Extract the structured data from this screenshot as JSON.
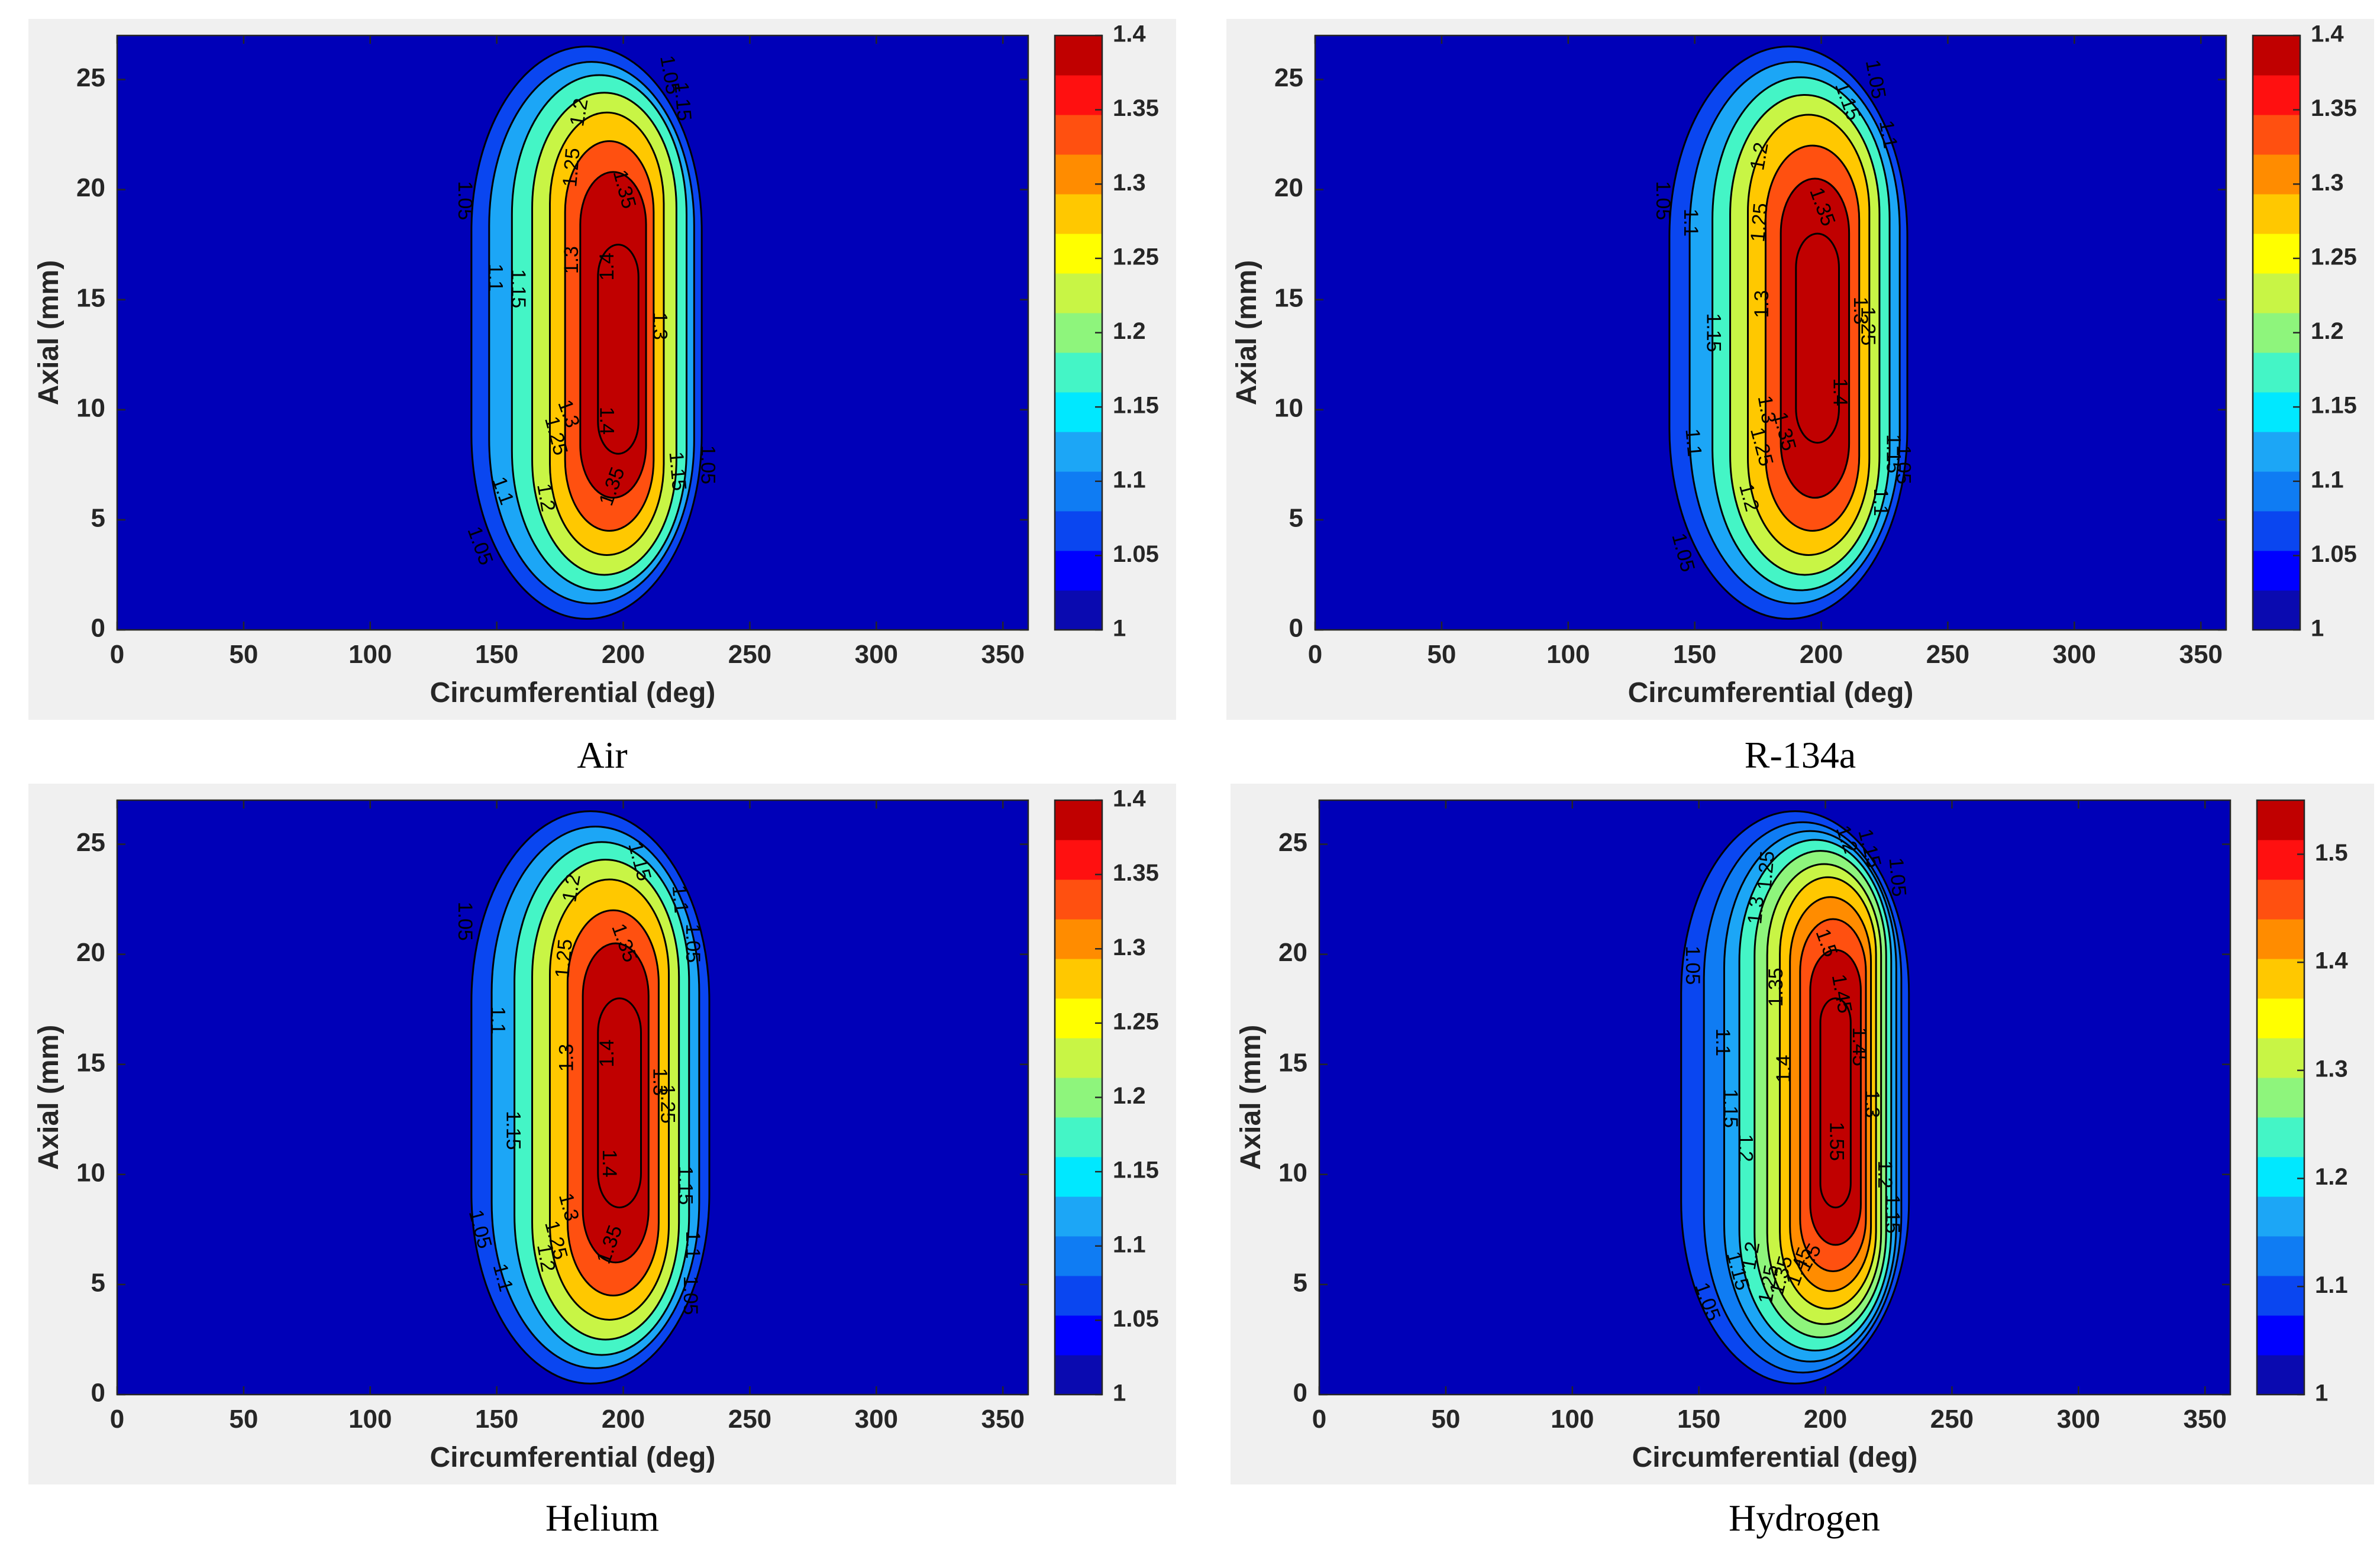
{
  "figure": {
    "captions": [
      "Air",
      "R-134a",
      "Helium",
      "Hydrogen"
    ]
  },
  "colors": {
    "panel_background": "#f0f0f0",
    "field_background": "#0000b8",
    "contour_line": "#000000"
  },
  "colormap": [
    "#0a0ab0",
    "#0000ff",
    "#0a46f0",
    "#0f7cf3",
    "#1ca6f6",
    "#00e8ff",
    "#44f5c6",
    "#8ef57c",
    "#c8f545",
    "#ffff00",
    "#ffc800",
    "#ff8c00",
    "#ff5010",
    "#ff1010",
    "#c00000"
  ],
  "chart_data": [
    {
      "type": "heatmap",
      "title": "Air",
      "xlabel": "Circumferential (deg)",
      "ylabel": "Axial (mm)",
      "xlim": [
        0,
        360
      ],
      "ylim": [
        0,
        27
      ],
      "xticks": [
        "0",
        "50",
        "100",
        "150",
        "200",
        "250",
        "300",
        "350"
      ],
      "yticks": [
        "0",
        "5",
        "10",
        "15",
        "20",
        "25"
      ],
      "colorbar": {
        "min": 1,
        "max": 1.4,
        "ticks": [
          "1",
          "1.05",
          "1.1",
          "1.15",
          "1.2",
          "1.25",
          "1.3",
          "1.35",
          "1.4"
        ]
      },
      "peak": {
        "x": 198,
        "y": 13.5,
        "value": 1.42
      },
      "contour_levels": [
        1.05,
        1.1,
        1.15,
        1.2,
        1.25,
        1.3,
        1.35,
        1.4
      ],
      "contours": [
        {
          "level": 1.05,
          "left": 140,
          "right": 231,
          "bottom": 0.5,
          "top": 26.5
        },
        {
          "level": 1.1,
          "left": 147,
          "right": 228,
          "bottom": 1.2,
          "top": 25.8
        },
        {
          "level": 1.15,
          "left": 156,
          "right": 225,
          "bottom": 1.8,
          "top": 25.2
        },
        {
          "level": 1.2,
          "left": 164,
          "right": 221,
          "bottom": 2.5,
          "top": 24.4
        },
        {
          "level": 1.25,
          "left": 171,
          "right": 216,
          "bottom": 3.4,
          "top": 23.5
        },
        {
          "level": 1.3,
          "left": 177,
          "right": 212,
          "bottom": 4.5,
          "top": 22.2
        },
        {
          "level": 1.35,
          "left": 183,
          "right": 209,
          "bottom": 6.0,
          "top": 20.8
        },
        {
          "level": 1.4,
          "left": 190,
          "right": 206,
          "bottom": 8.0,
          "top": 17.5
        }
      ],
      "contour_labels": [
        {
          "text": "1.05",
          "x": 137,
          "y": 19.5,
          "angle": 90
        },
        {
          "text": "1.1",
          "x": 149,
          "y": 16.0,
          "angle": 90
        },
        {
          "text": "1.15",
          "x": 158,
          "y": 15.5,
          "angle": 90
        },
        {
          "text": "1.2",
          "x": 183,
          "y": 23.5,
          "angle": -80
        },
        {
          "text": "1.25",
          "x": 180,
          "y": 21.0,
          "angle": -85
        },
        {
          "text": "1.3",
          "x": 180,
          "y": 16.8,
          "angle": -90
        },
        {
          "text": "1.35",
          "x": 200,
          "y": 20.0,
          "angle": 75
        },
        {
          "text": "1.4",
          "x": 194,
          "y": 16.5,
          "angle": -90
        },
        {
          "text": "1.4",
          "x": 193,
          "y": 9.5,
          "angle": 90
        },
        {
          "text": "1.3",
          "x": 214,
          "y": 13.8,
          "angle": 90
        },
        {
          "text": "1.35",
          "x": 196,
          "y": 6.5,
          "angle": -70
        },
        {
          "text": "1.3",
          "x": 178,
          "y": 9.8,
          "angle": 70
        },
        {
          "text": "1.25",
          "x": 173,
          "y": 8.8,
          "angle": 75
        },
        {
          "text": "1.2",
          "x": 169,
          "y": 6.0,
          "angle": 80
        },
        {
          "text": "1.1",
          "x": 152,
          "y": 6.3,
          "angle": 70
        },
        {
          "text": "1.05",
          "x": 143,
          "y": 3.8,
          "angle": 70
        },
        {
          "text": "1.15",
          "x": 221,
          "y": 7.2,
          "angle": 85
        },
        {
          "text": "1.05",
          "x": 233,
          "y": 7.5,
          "angle": 90
        },
        {
          "text": "1.05",
          "x": 218,
          "y": 25.2,
          "angle": 80
        },
        {
          "text": "1.15",
          "x": 223,
          "y": 24.0,
          "angle": 85
        }
      ]
    },
    {
      "type": "heatmap",
      "title": "R-134a",
      "xlabel": "Circumferential (deg)",
      "ylabel": "Axial (mm)",
      "xlim": [
        0,
        360
      ],
      "ylim": [
        0,
        27
      ],
      "xticks": [
        "0",
        "50",
        "100",
        "150",
        "200",
        "250",
        "300",
        "350"
      ],
      "yticks": [
        "0",
        "5",
        "10",
        "15",
        "20",
        "25"
      ],
      "colorbar": {
        "min": 1,
        "max": 1.4,
        "ticks": [
          "1",
          "1.05",
          "1.1",
          "1.15",
          "1.2",
          "1.25",
          "1.3",
          "1.35",
          "1.4"
        ]
      },
      "peak": {
        "x": 198,
        "y": 13.5,
        "value": 1.42
      },
      "contour_levels": [
        1.05,
        1.1,
        1.15,
        1.2,
        1.25,
        1.3,
        1.35,
        1.4
      ],
      "contours": [
        {
          "level": 1.05,
          "left": 140,
          "right": 234,
          "bottom": 0.5,
          "top": 26.5
        },
        {
          "level": 1.1,
          "left": 148,
          "right": 231,
          "bottom": 1.2,
          "top": 25.8
        },
        {
          "level": 1.15,
          "left": 157,
          "right": 227,
          "bottom": 1.8,
          "top": 25.1
        },
        {
          "level": 1.2,
          "left": 164,
          "right": 223,
          "bottom": 2.5,
          "top": 24.3
        },
        {
          "level": 1.25,
          "left": 171,
          "right": 219,
          "bottom": 3.4,
          "top": 23.4
        },
        {
          "level": 1.3,
          "left": 178,
          "right": 215,
          "bottom": 4.5,
          "top": 22.0
        },
        {
          "level": 1.35,
          "left": 184,
          "right": 211,
          "bottom": 6.0,
          "top": 20.5
        },
        {
          "level": 1.4,
          "left": 190,
          "right": 207,
          "bottom": 8.5,
          "top": 18.0
        }
      ],
      "contour_labels": [
        {
          "text": "1.05",
          "x": 137,
          "y": 19.5,
          "angle": 90
        },
        {
          "text": "1.1",
          "x": 148,
          "y": 18.5,
          "angle": 90
        },
        {
          "text": "1.15",
          "x": 157,
          "y": 13.5,
          "angle": 90
        },
        {
          "text": "1.2",
          "x": 176,
          "y": 21.5,
          "angle": -80
        },
        {
          "text": "1.25",
          "x": 176,
          "y": 18.5,
          "angle": -85
        },
        {
          "text": "1.3",
          "x": 177,
          "y": 14.8,
          "angle": -90
        },
        {
          "text": "1.35",
          "x": 200,
          "y": 19.2,
          "angle": 70
        },
        {
          "text": "1.4",
          "x": 207,
          "y": 10.8,
          "angle": 90
        },
        {
          "text": "1.3",
          "x": 178,
          "y": 10.0,
          "angle": 80
        },
        {
          "text": "1.35",
          "x": 185,
          "y": 9.0,
          "angle": 75
        },
        {
          "text": "1.25",
          "x": 176,
          "y": 8.3,
          "angle": 75
        },
        {
          "text": "1.2",
          "x": 171,
          "y": 6.0,
          "angle": 75
        },
        {
          "text": "1.1",
          "x": 149,
          "y": 8.5,
          "angle": 85
        },
        {
          "text": "1.05",
          "x": 145,
          "y": 3.5,
          "angle": 75
        },
        {
          "text": "1.3",
          "x": 215,
          "y": 14.5,
          "angle": 90
        },
        {
          "text": "1.25",
          "x": 218,
          "y": 13.8,
          "angle": 90
        },
        {
          "text": "1.15",
          "x": 228,
          "y": 8.0,
          "angle": 90
        },
        {
          "text": "1.1",
          "x": 223,
          "y": 5.8,
          "angle": 90
        },
        {
          "text": "1.05",
          "x": 232,
          "y": 7.5,
          "angle": 90
        },
        {
          "text": "1.15",
          "x": 210,
          "y": 24.0,
          "angle": 70
        },
        {
          "text": "1.05",
          "x": 221,
          "y": 25.0,
          "angle": 80
        },
        {
          "text": "1.1",
          "x": 226,
          "y": 22.5,
          "angle": 80
        }
      ]
    },
    {
      "type": "heatmap",
      "title": "Helium",
      "xlabel": "Circumferential (deg)",
      "ylabel": "Axial (mm)",
      "xlim": [
        0,
        360
      ],
      "ylim": [
        0,
        27
      ],
      "xticks": [
        "0",
        "50",
        "100",
        "150",
        "200",
        "250",
        "300",
        "350"
      ],
      "yticks": [
        "0",
        "5",
        "10",
        "15",
        "20",
        "25"
      ],
      "colorbar": {
        "min": 1,
        "max": 1.4,
        "ticks": [
          "1",
          "1.05",
          "1.1",
          "1.15",
          "1.2",
          "1.25",
          "1.3",
          "1.35",
          "1.4"
        ]
      },
      "peak": {
        "x": 198,
        "y": 13.5,
        "value": 1.42
      },
      "contour_levels": [
        1.05,
        1.1,
        1.15,
        1.2,
        1.25,
        1.3,
        1.35,
        1.4
      ],
      "contours": [
        {
          "level": 1.05,
          "left": 140,
          "right": 234,
          "bottom": 0.5,
          "top": 26.5
        },
        {
          "level": 1.1,
          "left": 148,
          "right": 230,
          "bottom": 1.2,
          "top": 25.8
        },
        {
          "level": 1.15,
          "left": 157,
          "right": 226,
          "bottom": 1.8,
          "top": 25.1
        },
        {
          "level": 1.2,
          "left": 164,
          "right": 222,
          "bottom": 2.5,
          "top": 24.3
        },
        {
          "level": 1.25,
          "left": 171,
          "right": 218,
          "bottom": 3.4,
          "top": 23.4
        },
        {
          "level": 1.3,
          "left": 178,
          "right": 214,
          "bottom": 4.5,
          "top": 22.0
        },
        {
          "level": 1.35,
          "left": 184,
          "right": 210,
          "bottom": 6.0,
          "top": 20.5
        },
        {
          "level": 1.4,
          "left": 190,
          "right": 207,
          "bottom": 8.5,
          "top": 18.0
        }
      ],
      "contour_labels": [
        {
          "text": "1.05",
          "x": 137,
          "y": 21.5,
          "angle": 90
        },
        {
          "text": "1.1",
          "x": 150,
          "y": 17.0,
          "angle": 90
        },
        {
          "text": "1.15",
          "x": 156,
          "y": 12.0,
          "angle": 90
        },
        {
          "text": "1.2",
          "x": 180,
          "y": 23.0,
          "angle": -80
        },
        {
          "text": "1.25",
          "x": 177,
          "y": 19.8,
          "angle": -85
        },
        {
          "text": "1.3",
          "x": 178,
          "y": 15.3,
          "angle": -90
        },
        {
          "text": "1.35",
          "x": 200,
          "y": 20.5,
          "angle": 70
        },
        {
          "text": "1.4",
          "x": 194,
          "y": 15.5,
          "angle": -90
        },
        {
          "text": "1.4",
          "x": 194,
          "y": 10.5,
          "angle": 90
        },
        {
          "text": "1.3",
          "x": 214,
          "y": 14.2,
          "angle": 90
        },
        {
          "text": "1.25",
          "x": 217,
          "y": 13.2,
          "angle": 90
        },
        {
          "text": "1.3",
          "x": 178,
          "y": 8.5,
          "angle": 75
        },
        {
          "text": "1.25",
          "x": 173,
          "y": 7.0,
          "angle": 75
        },
        {
          "text": "1.2",
          "x": 169,
          "y": 6.2,
          "angle": 80
        },
        {
          "text": "1.35",
          "x": 195,
          "y": 6.8,
          "angle": -70
        },
        {
          "text": "1.1",
          "x": 152,
          "y": 5.3,
          "angle": 75
        },
        {
          "text": "1.05",
          "x": 143,
          "y": 7.5,
          "angle": 75
        },
        {
          "text": "1.15",
          "x": 224,
          "y": 9.5,
          "angle": 90
        },
        {
          "text": "1.1",
          "x": 227,
          "y": 6.8,
          "angle": 90
        },
        {
          "text": "1.05",
          "x": 226,
          "y": 4.5,
          "angle": 90
        },
        {
          "text": "1.15",
          "x": 206,
          "y": 24.2,
          "angle": 75
        },
        {
          "text": "1.1",
          "x": 222,
          "y": 22.5,
          "angle": 85
        },
        {
          "text": "1.05",
          "x": 227,
          "y": 20.5,
          "angle": 90
        }
      ]
    },
    {
      "type": "heatmap",
      "title": "Hydrogen",
      "xlabel": "Circumferential (deg)",
      "ylabel": "Axial (mm)",
      "xlim": [
        0,
        360
      ],
      "ylim": [
        0,
        27
      ],
      "xticks": [
        "0",
        "50",
        "100",
        "150",
        "200",
        "250",
        "300",
        "350"
      ],
      "yticks": [
        "0",
        "5",
        "10",
        "15",
        "20",
        "25"
      ],
      "colorbar": {
        "min": 1,
        "max": 1.55,
        "ticks": [
          "1",
          "1.1",
          "1.2",
          "1.3",
          "1.4",
          "1.5"
        ]
      },
      "peak": {
        "x": 203,
        "y": 14,
        "value": 1.57
      },
      "contour_levels": [
        1.05,
        1.1,
        1.15,
        1.2,
        1.25,
        1.3,
        1.35,
        1.4,
        1.45,
        1.5,
        1.55
      ],
      "contours": [
        {
          "level": 1.05,
          "left": 143,
          "right": 233,
          "bottom": 0.5,
          "top": 26.5
        },
        {
          "level": 1.1,
          "left": 152,
          "right": 230,
          "bottom": 1.0,
          "top": 26.0
        },
        {
          "level": 1.15,
          "left": 160,
          "right": 228,
          "bottom": 1.5,
          "top": 25.6
        },
        {
          "level": 1.2,
          "left": 166,
          "right": 226,
          "bottom": 2.0,
          "top": 25.2
        },
        {
          "level": 1.25,
          "left": 172,
          "right": 224,
          "bottom": 2.6,
          "top": 24.7
        },
        {
          "level": 1.3,
          "left": 177,
          "right": 222,
          "bottom": 3.2,
          "top": 24.1
        },
        {
          "level": 1.35,
          "left": 182,
          "right": 220,
          "bottom": 3.9,
          "top": 23.5
        },
        {
          "level": 1.4,
          "left": 186,
          "right": 218,
          "bottom": 4.7,
          "top": 22.6
        },
        {
          "level": 1.45,
          "left": 190,
          "right": 216,
          "bottom": 5.6,
          "top": 21.6
        },
        {
          "level": 1.5,
          "left": 194,
          "right": 214,
          "bottom": 6.8,
          "top": 20.2
        },
        {
          "level": 1.55,
          "left": 198,
          "right": 210,
          "bottom": 8.5,
          "top": 18.0
        }
      ],
      "contour_labels": [
        {
          "text": "1.05",
          "x": 147,
          "y": 19.5,
          "angle": 90
        },
        {
          "text": "1.1",
          "x": 159,
          "y": 16.0,
          "angle": 90
        },
        {
          "text": "1.15",
          "x": 162,
          "y": 13.0,
          "angle": 90
        },
        {
          "text": "1.2",
          "x": 168,
          "y": 11.2,
          "angle": 90
        },
        {
          "text": "1.3",
          "x": 173,
          "y": 22.0,
          "angle": -85
        },
        {
          "text": "1.25",
          "x": 177,
          "y": 23.8,
          "angle": -85
        },
        {
          "text": "1.35",
          "x": 181,
          "y": 18.5,
          "angle": -90
        },
        {
          "text": "1.4",
          "x": 184,
          "y": 14.8,
          "angle": -90
        },
        {
          "text": "1.5",
          "x": 200,
          "y": 20.5,
          "angle": 70
        },
        {
          "text": "1.45",
          "x": 206,
          "y": 18.2,
          "angle": 80
        },
        {
          "text": "1.55",
          "x": 204,
          "y": 11.5,
          "angle": 90
        },
        {
          "text": "1.5",
          "x": 194,
          "y": 6.2,
          "angle": -60
        },
        {
          "text": "1.45",
          "x": 190,
          "y": 5.8,
          "angle": -70
        },
        {
          "text": "1.35",
          "x": 183,
          "y": 5.4,
          "angle": -75
        },
        {
          "text": "1.25",
          "x": 178,
          "y": 5.0,
          "angle": -80
        },
        {
          "text": "1.2",
          "x": 171,
          "y": 6.3,
          "angle": -80
        },
        {
          "text": "1.15",
          "x": 165,
          "y": 5.6,
          "angle": 75
        },
        {
          "text": "1.05",
          "x": 153,
          "y": 4.2,
          "angle": 70
        },
        {
          "text": "1.45",
          "x": 213,
          "y": 15.8,
          "angle": 90
        },
        {
          "text": "1.3",
          "x": 218,
          "y": 13.2,
          "angle": 90
        },
        {
          "text": "1.2",
          "x": 223,
          "y": 10.0,
          "angle": 90
        },
        {
          "text": "1.15",
          "x": 226,
          "y": 8.2,
          "angle": 90
        },
        {
          "text": "1.05",
          "x": 228,
          "y": 23.5,
          "angle": 85
        },
        {
          "text": "1.15",
          "x": 217,
          "y": 24.8,
          "angle": 75
        },
        {
          "text": "1.2",
          "x": 208,
          "y": 25.2,
          "angle": 70
        }
      ]
    }
  ]
}
